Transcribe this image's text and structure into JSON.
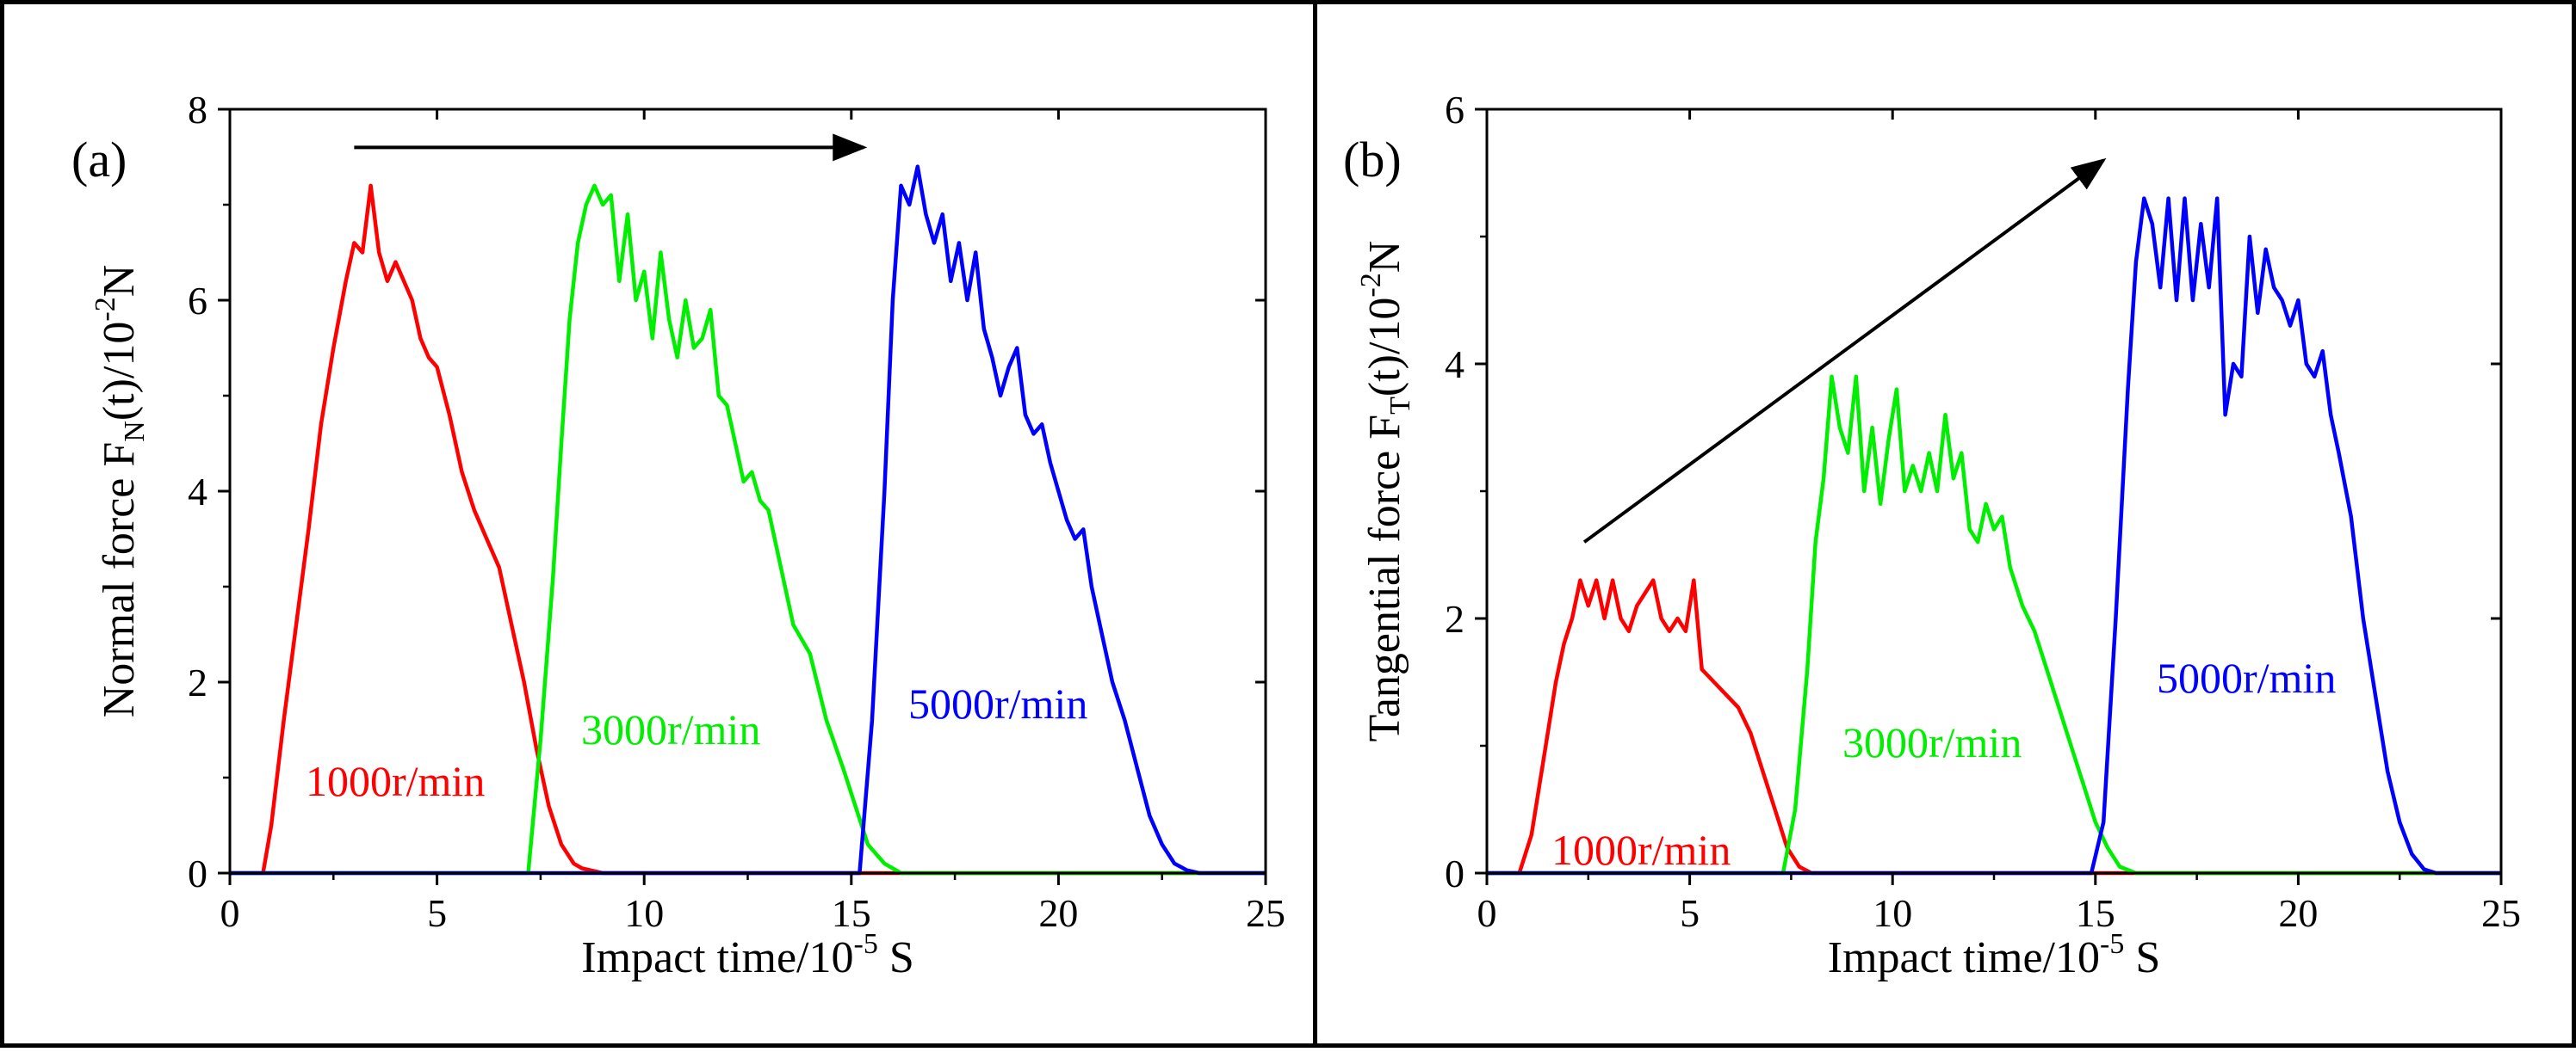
{
  "chart_data": [
    {
      "type": "line",
      "panel_label": "(a)",
      "xlabel": {
        "main": "Impact time/10",
        "sup": "-5",
        "tail": " S"
      },
      "ylabel": {
        "main": "Normal force F",
        "sub": "N",
        "mid": "(t)/10",
        "sup": "-2",
        "tail": "N"
      },
      "xlim": [
        0,
        25
      ],
      "ylim": [
        0,
        8
      ],
      "xticks": [
        0,
        5,
        10,
        15,
        20,
        25
      ],
      "xtick_labels": [
        "0",
        "5",
        "10",
        "15",
        "20",
        "25"
      ],
      "yticks": [
        0,
        2,
        4,
        6,
        8
      ],
      "ytick_labels": [
        "0",
        "2",
        "4",
        "6",
        "8"
      ],
      "trend_arrow": {
        "from": [
          3.0,
          7.6
        ],
        "to": [
          15.3,
          7.6
        ]
      },
      "series": [
        {
          "name": "1000r/min",
          "color": "#ff0000",
          "x": [
            0,
            0.8,
            1.0,
            1.3,
            1.6,
            1.9,
            2.2,
            2.5,
            2.8,
            3.0,
            3.2,
            3.4,
            3.6,
            3.8,
            4.0,
            4.2,
            4.4,
            4.6,
            4.8,
            5.0,
            5.3,
            5.6,
            5.9,
            6.2,
            6.5,
            6.8,
            7.1,
            7.4,
            7.7,
            8.0,
            8.3,
            8.5,
            9.0,
            25
          ],
          "values": [
            0,
            0,
            0.5,
            1.6,
            2.6,
            3.6,
            4.7,
            5.5,
            6.2,
            6.6,
            6.5,
            7.2,
            6.5,
            6.2,
            6.4,
            6.2,
            6.0,
            5.6,
            5.4,
            5.3,
            4.8,
            4.2,
            3.8,
            3.5,
            3.2,
            2.6,
            2.0,
            1.3,
            0.7,
            0.3,
            0.1,
            0.05,
            0,
            0
          ]
        },
        {
          "name": "3000r/min",
          "color": "#00ee00",
          "x": [
            0,
            7.2,
            7.5,
            7.8,
            8.0,
            8.2,
            8.4,
            8.6,
            8.8,
            9.0,
            9.2,
            9.4,
            9.6,
            9.8,
            10.0,
            10.2,
            10.4,
            10.6,
            10.8,
            11.0,
            11.2,
            11.4,
            11.6,
            11.8,
            12.0,
            12.2,
            12.4,
            12.6,
            12.8,
            13.0,
            13.3,
            13.6,
            14.0,
            14.4,
            14.8,
            15.1,
            15.4,
            15.8,
            16.2,
            25
          ],
          "values": [
            0,
            0,
            1.4,
            3.1,
            4.5,
            5.8,
            6.6,
            7.0,
            7.2,
            7.0,
            7.1,
            6.2,
            6.9,
            6.0,
            6.3,
            5.6,
            6.5,
            5.8,
            5.4,
            6.0,
            5.5,
            5.6,
            5.9,
            5.0,
            4.9,
            4.5,
            4.1,
            4.2,
            3.9,
            3.8,
            3.2,
            2.6,
            2.3,
            1.6,
            1.1,
            0.7,
            0.3,
            0.1,
            0,
            0
          ]
        },
        {
          "name": "5000r/min",
          "color": "#0000ff",
          "x": [
            0,
            15.2,
            15.5,
            15.8,
            16.0,
            16.2,
            16.4,
            16.6,
            16.8,
            17.0,
            17.2,
            17.4,
            17.6,
            17.8,
            18.0,
            18.2,
            18.4,
            18.6,
            18.8,
            19.0,
            19.2,
            19.4,
            19.6,
            19.8,
            20.0,
            20.2,
            20.4,
            20.6,
            20.8,
            21.0,
            21.3,
            21.6,
            21.9,
            22.2,
            22.5,
            22.8,
            23.1,
            23.4,
            25
          ],
          "values": [
            0,
            0,
            1.6,
            4.0,
            6.0,
            7.2,
            7.0,
            7.4,
            6.9,
            6.6,
            6.9,
            6.2,
            6.6,
            6.0,
            6.5,
            5.7,
            5.4,
            5.0,
            5.3,
            5.5,
            4.8,
            4.6,
            4.7,
            4.3,
            4.0,
            3.7,
            3.5,
            3.6,
            3.0,
            2.6,
            2.0,
            1.6,
            1.1,
            0.6,
            0.3,
            0.1,
            0.03,
            0,
            0
          ]
        }
      ]
    },
    {
      "type": "line",
      "panel_label": "(b)",
      "xlabel": {
        "main": "Impact time/10",
        "sup": "-5",
        "tail": " S"
      },
      "ylabel": {
        "main": "Tangential force F",
        "sub": "T",
        "mid": "(t)/10",
        "sup": "-2",
        "tail": "N"
      },
      "xlim": [
        0,
        25
      ],
      "ylim": [
        0,
        6
      ],
      "xticks": [
        0,
        5,
        10,
        15,
        20,
        25
      ],
      "xtick_labels": [
        "0",
        "5",
        "10",
        "15",
        "20",
        "25"
      ],
      "yticks": [
        0,
        2,
        4,
        6
      ],
      "ytick_labels": [
        "0",
        "2",
        "4",
        "6"
      ],
      "trend_arrow": {
        "from": [
          2.4,
          2.6
        ],
        "to": [
          15.2,
          5.6
        ]
      },
      "series": [
        {
          "name": "1000r/min",
          "color": "#ff0000",
          "x": [
            0,
            0.8,
            1.1,
            1.4,
            1.7,
            1.9,
            2.1,
            2.3,
            2.5,
            2.7,
            2.9,
            3.1,
            3.3,
            3.5,
            3.7,
            3.9,
            4.1,
            4.3,
            4.5,
            4.7,
            4.9,
            5.1,
            5.3,
            5.6,
            5.9,
            6.2,
            6.5,
            6.8,
            7.1,
            7.4,
            7.7,
            8.0,
            25
          ],
          "values": [
            0,
            0,
            0.3,
            0.9,
            1.5,
            1.8,
            2.0,
            2.3,
            2.1,
            2.3,
            2.0,
            2.3,
            2.0,
            1.9,
            2.1,
            2.2,
            2.3,
            2.0,
            1.9,
            2.0,
            1.9,
            2.3,
            1.6,
            1.5,
            1.4,
            1.3,
            1.1,
            0.8,
            0.5,
            0.2,
            0.05,
            0,
            0
          ]
        },
        {
          "name": "3000r/min",
          "color": "#00ee00",
          "x": [
            0,
            7.3,
            7.6,
            7.9,
            8.1,
            8.3,
            8.5,
            8.7,
            8.9,
            9.1,
            9.3,
            9.5,
            9.7,
            9.9,
            10.1,
            10.3,
            10.5,
            10.7,
            10.9,
            11.1,
            11.3,
            11.5,
            11.7,
            11.9,
            12.1,
            12.3,
            12.5,
            12.7,
            12.9,
            13.2,
            13.5,
            13.8,
            14.1,
            14.4,
            14.7,
            15.0,
            15.3,
            15.6,
            16.0,
            25
          ],
          "values": [
            0,
            0,
            0.5,
            1.6,
            2.6,
            3.1,
            3.9,
            3.5,
            3.3,
            3.9,
            3.0,
            3.5,
            2.9,
            3.4,
            3.8,
            3.0,
            3.2,
            3.0,
            3.3,
            3.0,
            3.6,
            3.1,
            3.3,
            2.7,
            2.6,
            2.9,
            2.7,
            2.8,
            2.4,
            2.1,
            1.9,
            1.6,
            1.3,
            1.0,
            0.7,
            0.4,
            0.2,
            0.05,
            0,
            0
          ]
        },
        {
          "name": "5000r/min",
          "color": "#0000ff",
          "x": [
            0,
            14.9,
            15.2,
            15.5,
            15.8,
            16.0,
            16.2,
            16.4,
            16.6,
            16.8,
            17.0,
            17.2,
            17.4,
            17.6,
            17.8,
            18.0,
            18.2,
            18.4,
            18.6,
            18.8,
            19.0,
            19.2,
            19.4,
            19.6,
            19.8,
            20.0,
            20.2,
            20.4,
            20.6,
            20.8,
            21.0,
            21.3,
            21.6,
            21.9,
            22.2,
            22.5,
            22.8,
            23.1,
            23.4,
            25
          ],
          "values": [
            0,
            0,
            0.4,
            2.0,
            3.8,
            4.8,
            5.3,
            5.1,
            4.6,
            5.3,
            4.5,
            5.3,
            4.5,
            5.1,
            4.6,
            5.3,
            3.6,
            4.0,
            3.9,
            5.0,
            4.4,
            4.9,
            4.6,
            4.5,
            4.3,
            4.5,
            4.0,
            3.9,
            4.1,
            3.6,
            3.3,
            2.8,
            2.0,
            1.4,
            0.8,
            0.4,
            0.15,
            0.03,
            0,
            0
          ]
        }
      ]
    }
  ]
}
